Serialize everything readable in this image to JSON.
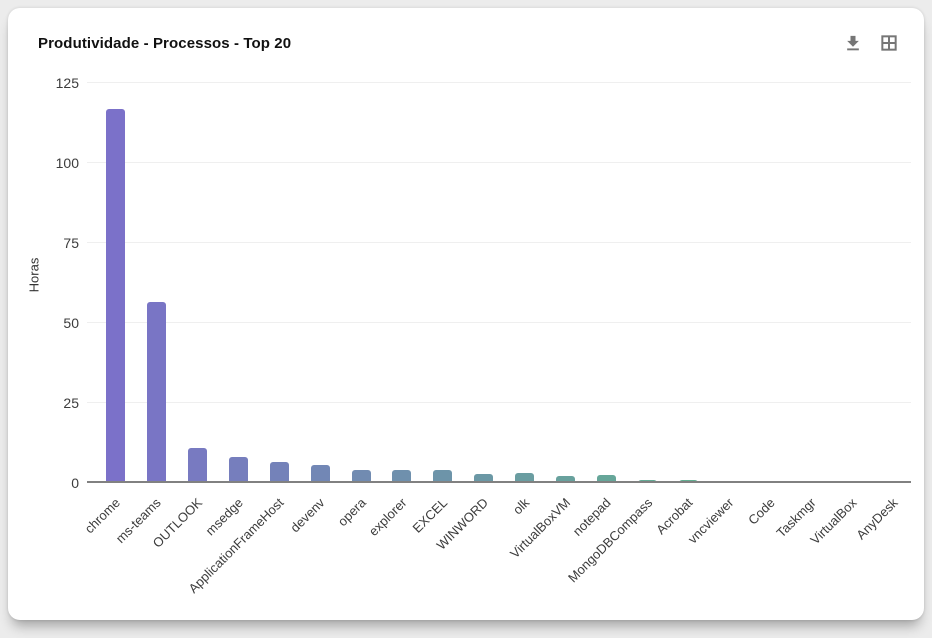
{
  "card": {
    "title": "Produtividade - Processos - Top 20",
    "toolbar": {
      "download_label": "download",
      "table_view_label": "table-view",
      "icon_color": "#767676"
    }
  },
  "chart_data": {
    "type": "bar",
    "title": "Produtividade - Processos - Top 20",
    "xlabel": "",
    "ylabel": "Horas",
    "ylim": [
      0,
      125
    ],
    "yticks": [
      0,
      25,
      50,
      75,
      100,
      125
    ],
    "grid": true,
    "legend": false,
    "categories": [
      "chrome",
      "ms-teams",
      "OUTLOOK",
      "msedge",
      "ApplicationFrameHost",
      "devenv",
      "opera",
      "explorer",
      "EXCEL",
      "WINWORD",
      "olk",
      "VirtualBoxVM",
      "notepad",
      "MongoDBCompass",
      "Acrobat",
      "vncviewer",
      "Code",
      "Taskmgr",
      "VirtualBox",
      "AnyDesk"
    ],
    "values": [
      117,
      56.5,
      11,
      8.2,
      6.6,
      5.6,
      4.1,
      4.1,
      4.0,
      2.8,
      3.1,
      2.2,
      2.5,
      0.8,
      0.9,
      0.6,
      0.3,
      0.25,
      0.2,
      0.15
    ],
    "bar_colors": [
      "#7B71C9",
      "#7975C5",
      "#787AC1",
      "#767EBD",
      "#7482B9",
      "#7287B5",
      "#718BB1",
      "#6F90AD",
      "#6D94A9",
      "#6B98A5",
      "#6A9DA1",
      "#68A19D",
      "#66A699",
      "#64AA95",
      "#63AE91",
      "#61B38D",
      "#5FB789",
      "#5DBC85",
      "#5CC081",
      "#5AC47D"
    ],
    "axis_line_color": "#818181",
    "gridline_color": "#efefef"
  }
}
